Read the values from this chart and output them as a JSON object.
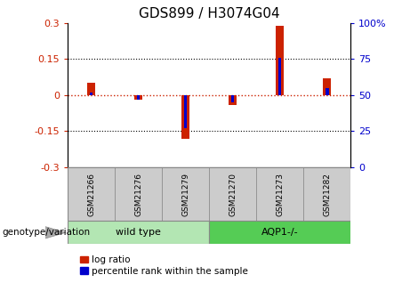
{
  "title": "GDS899 / H3074G04",
  "samples": [
    "GSM21266",
    "GSM21276",
    "GSM21279",
    "GSM21270",
    "GSM21273",
    "GSM21282"
  ],
  "log_ratios": [
    0.05,
    -0.02,
    -0.18,
    -0.04,
    0.29,
    0.07
  ],
  "percentile_ranks": [
    52,
    47,
    27,
    45,
    76,
    55
  ],
  "ylim": [
    -0.3,
    0.3
  ],
  "yticks_left": [
    -0.3,
    -0.15,
    0,
    0.15,
    0.3
  ],
  "yticks_right": [
    0,
    25,
    50,
    75,
    100
  ],
  "hlines": [
    0.15,
    -0.15
  ],
  "log_ratio_color": "#cc2200",
  "percentile_color": "#0000cc",
  "zero_line_color": "#cc2200",
  "hline_color": "#000000",
  "groups": [
    {
      "label": "wild type",
      "indices": [
        0,
        1,
        2
      ],
      "color": "#b3e6b3"
    },
    {
      "label": "AQP1-/-",
      "indices": [
        3,
        4,
        5
      ],
      "color": "#55cc55"
    }
  ],
  "sample_box_color": "#cccccc",
  "genotype_label": "genotype/variation",
  "legend_log_ratio": "log ratio",
  "legend_percentile": "percentile rank within the sample",
  "title_fontsize": 11,
  "tick_fontsize": 8,
  "sample_fontsize": 6.5,
  "group_fontsize": 8,
  "legend_fontsize": 7.5,
  "genotype_fontsize": 7.5,
  "red_bar_width": 0.18,
  "blue_bar_width": 0.07
}
